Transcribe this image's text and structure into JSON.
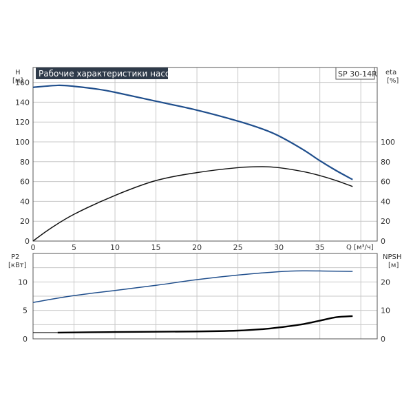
{
  "chart_data": [
    {
      "type": "line",
      "title": "Рабочие характеристики насоса",
      "model": "SP 30-14R",
      "xlabel": "Q [м³/ч]",
      "ylabel": [
        "H",
        "[м]"
      ],
      "ylabel_right": [
        "eta",
        "[%]"
      ],
      "xlim": [
        0,
        42
      ],
      "ylim": [
        0,
        175
      ],
      "ylim_right": [
        0,
        175
      ],
      "x_ticks": [
        0,
        5,
        10,
        15,
        20,
        25,
        30,
        35
      ],
      "y_ticks": [
        0,
        20,
        40,
        60,
        80,
        100,
        120,
        140,
        160
      ],
      "y_ticks_right": [
        0,
        20,
        40,
        60,
        80,
        100
      ],
      "grid": true,
      "series": [
        {
          "name": "H",
          "axis": "left",
          "color": "#1f4e8c",
          "x": [
            0,
            3,
            5,
            8,
            10,
            15,
            20,
            25,
            28,
            30,
            33,
            35,
            37,
            39
          ],
          "y": [
            155,
            157,
            156,
            153,
            150,
            141,
            132,
            121,
            113,
            106,
            92,
            81,
            71,
            62
          ]
        },
        {
          "name": "eta",
          "axis": "right",
          "color": "#111111",
          "x": [
            0,
            2,
            5,
            10,
            15,
            20,
            25,
            28,
            30,
            33,
            35,
            37,
            39
          ],
          "y": [
            0,
            12,
            27,
            46,
            61,
            69,
            74,
            75,
            74,
            70,
            66,
            61,
            55
          ]
        }
      ]
    },
    {
      "type": "line",
      "xlim": [
        0,
        42
      ],
      "ylabel": [
        "P2",
        "[кВт]"
      ],
      "ylabel_right": [
        "NPSH",
        "[м]"
      ],
      "ylim": [
        0,
        15
      ],
      "ylim_right": [
        0,
        30
      ],
      "y_ticks": [
        0,
        5,
        10
      ],
      "y_ticks_right": [
        0,
        10,
        20
      ],
      "grid": true,
      "series": [
        {
          "name": "P2",
          "axis": "left",
          "color": "#1f4e8c",
          "x": [
            0,
            5,
            10,
            15,
            20,
            25,
            30,
            33,
            36,
            39
          ],
          "y": [
            6.4,
            7.6,
            8.5,
            9.4,
            10.4,
            11.2,
            11.8,
            11.95,
            11.9,
            11.85
          ]
        },
        {
          "name": "NPSH",
          "axis": "right",
          "color": "#000000",
          "x": [
            3,
            10,
            20,
            25,
            28,
            30,
            33,
            35,
            37,
            39
          ],
          "y": [
            2.2,
            2.4,
            2.6,
            2.9,
            3.4,
            4.0,
            5.2,
            6.4,
            7.6,
            8.0
          ]
        }
      ]
    }
  ]
}
